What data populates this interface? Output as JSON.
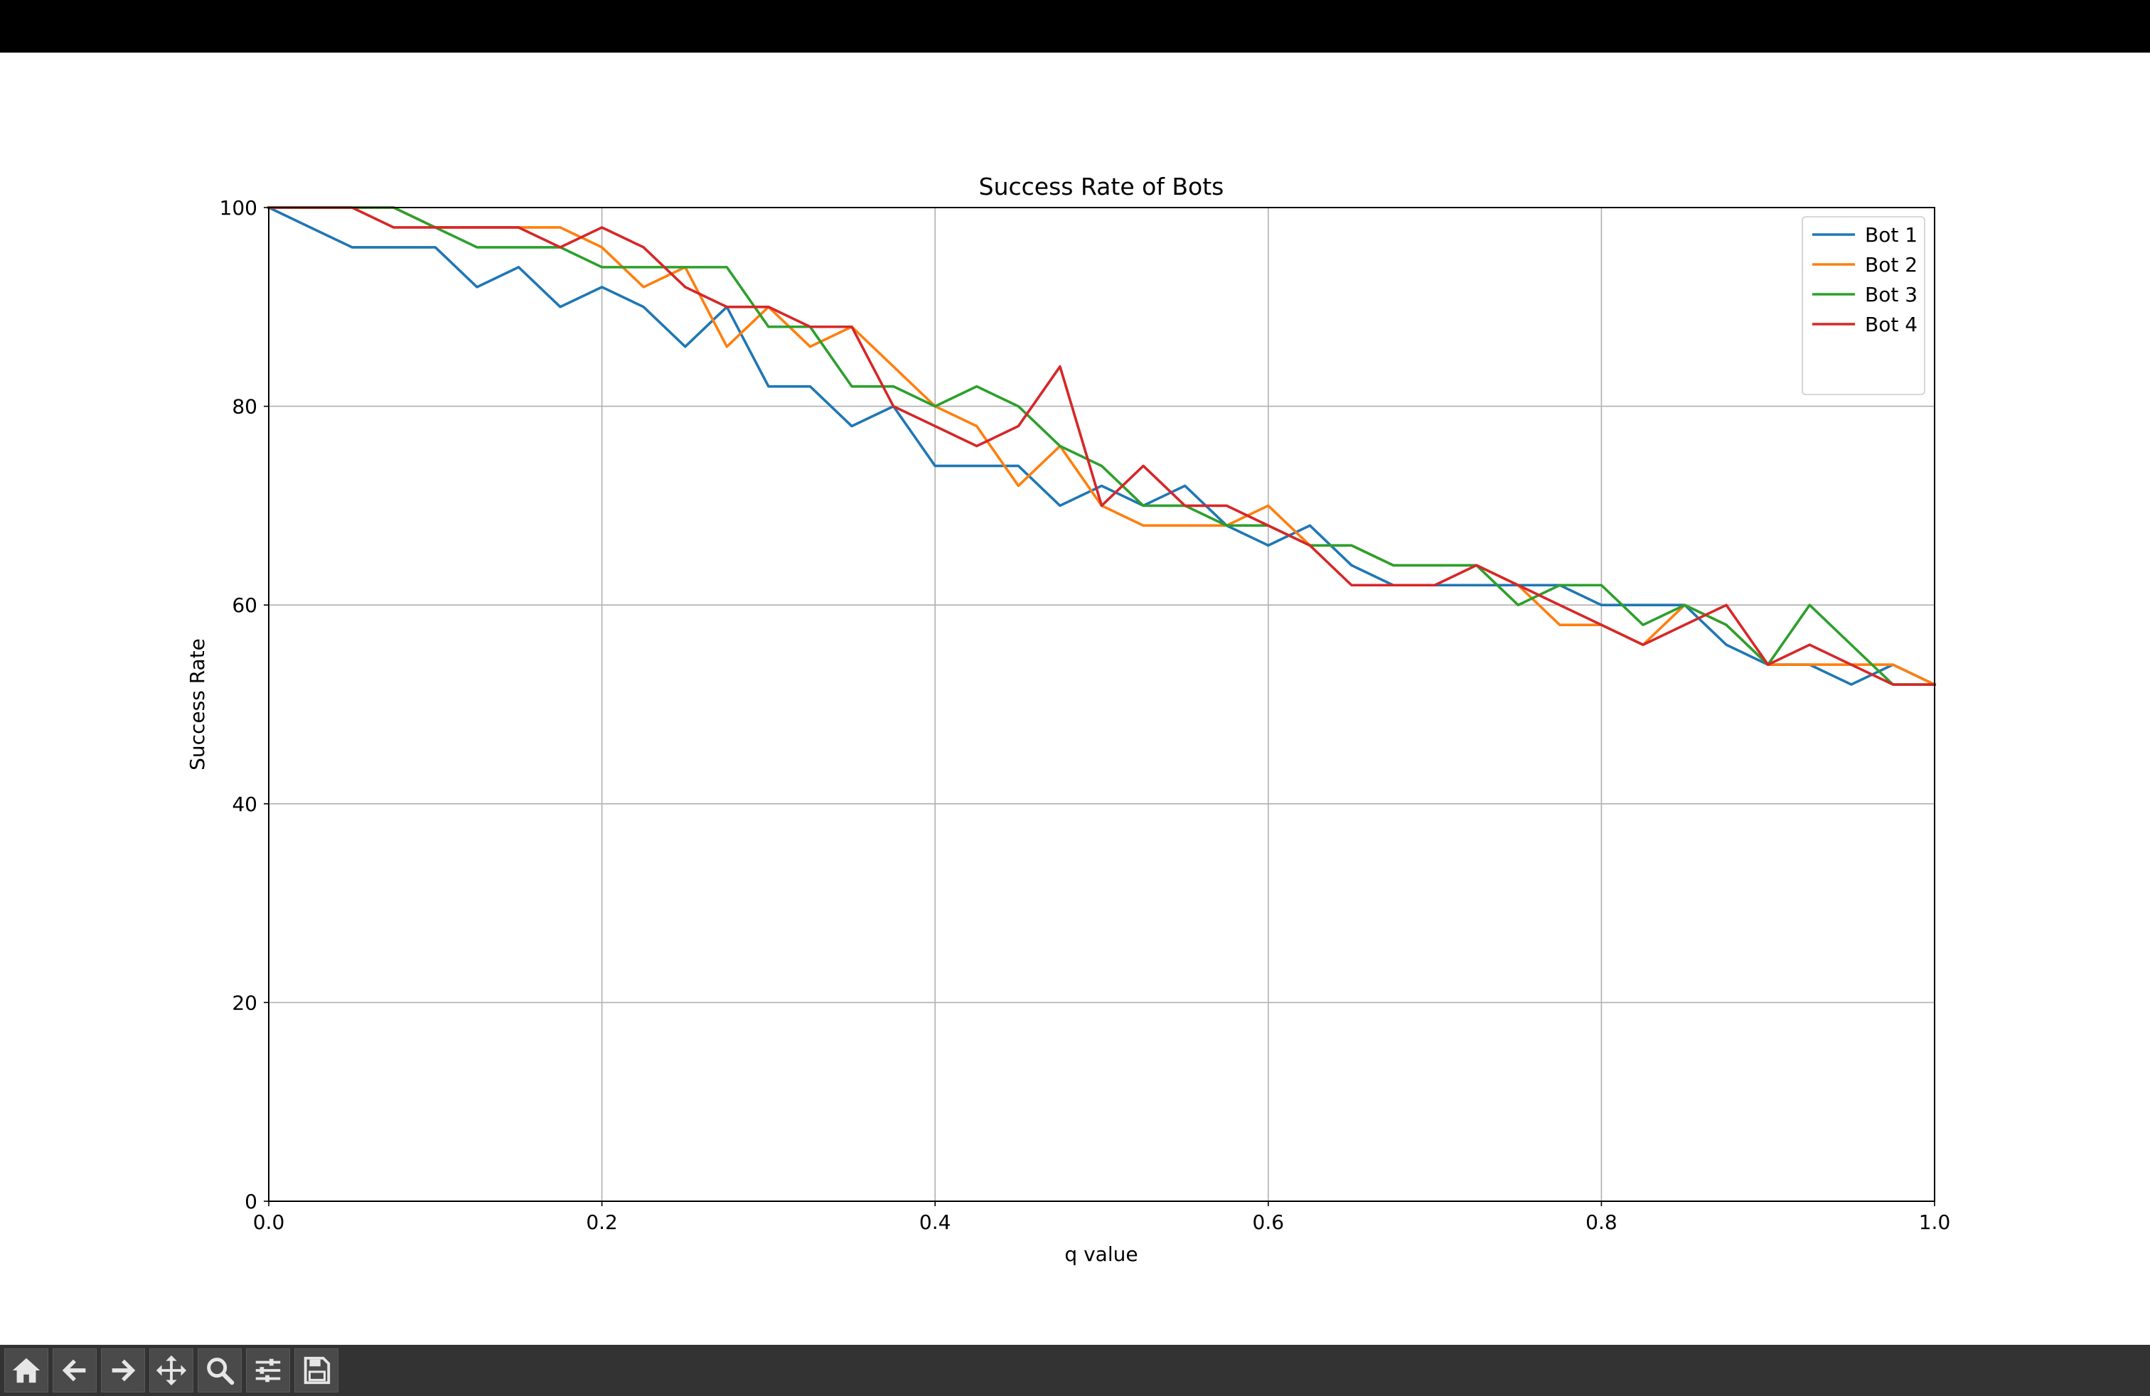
{
  "toolbar": {
    "buttons": [
      {
        "name": "home-icon"
      },
      {
        "name": "back-icon"
      },
      {
        "name": "forward-icon"
      },
      {
        "name": "pan-icon"
      },
      {
        "name": "zoom-icon"
      },
      {
        "name": "configure-subplots-icon"
      },
      {
        "name": "save-icon"
      }
    ]
  },
  "chart_data": {
    "type": "line",
    "title": "Success Rate of Bots",
    "xlabel": "q value",
    "ylabel": "Success Rate",
    "xlim": [
      0.0,
      1.0
    ],
    "ylim": [
      0,
      100
    ],
    "xticks": [
      "0.0",
      "0.2",
      "0.4",
      "0.6",
      "0.8",
      "1.0"
    ],
    "yticks": [
      "0",
      "20",
      "40",
      "60",
      "80",
      "100"
    ],
    "grid": true,
    "legend_position": "top-right",
    "x": [
      0.0,
      0.025,
      0.05,
      0.075,
      0.1,
      0.125,
      0.15,
      0.175,
      0.2,
      0.225,
      0.25,
      0.275,
      0.3,
      0.325,
      0.35,
      0.375,
      0.4,
      0.425,
      0.45,
      0.475,
      0.5,
      0.525,
      0.55,
      0.575,
      0.6,
      0.625,
      0.65,
      0.675,
      0.7,
      0.725,
      0.75,
      0.775,
      0.8,
      0.825,
      0.85,
      0.875,
      0.9,
      0.925,
      0.95,
      0.975,
      1.0
    ],
    "series": [
      {
        "name": "Bot 1",
        "color": "#1f77b4",
        "values": [
          100,
          98,
          96,
          96,
          96,
          92,
          94,
          90,
          92,
          90,
          86,
          90,
          82,
          82,
          78,
          80,
          74,
          74,
          74,
          70,
          72,
          70,
          72,
          68,
          66,
          68,
          64,
          62,
          62,
          62,
          62,
          62,
          60,
          60,
          60,
          56,
          54,
          54,
          52,
          54,
          52
        ]
      },
      {
        "name": "Bot 2",
        "color": "#ff7f0e",
        "values": [
          100,
          100,
          100,
          100,
          98,
          98,
          98,
          98,
          96,
          92,
          94,
          86,
          90,
          86,
          88,
          84,
          80,
          78,
          72,
          76,
          70,
          68,
          68,
          68,
          70,
          66,
          66,
          64,
          64,
          64,
          62,
          58,
          58,
          56,
          60,
          58,
          54,
          54,
          54,
          54,
          52
        ]
      },
      {
        "name": "Bot 3",
        "color": "#2ca02c",
        "values": [
          100,
          100,
          100,
          100,
          98,
          96,
          96,
          96,
          94,
          94,
          94,
          94,
          88,
          88,
          82,
          82,
          80,
          82,
          80,
          76,
          74,
          70,
          70,
          68,
          68,
          66,
          66,
          64,
          64,
          64,
          60,
          62,
          62,
          58,
          60,
          58,
          54,
          60,
          56,
          52,
          52
        ]
      },
      {
        "name": "Bot 4",
        "color": "#d62728",
        "values": [
          100,
          100,
          100,
          98,
          98,
          98,
          98,
          96,
          98,
          96,
          92,
          90,
          90,
          88,
          88,
          80,
          78,
          76,
          78,
          84,
          70,
          74,
          70,
          70,
          68,
          66,
          62,
          62,
          62,
          64,
          62,
          60,
          58,
          56,
          58,
          60,
          54,
          56,
          54,
          52,
          52
        ]
      }
    ]
  }
}
